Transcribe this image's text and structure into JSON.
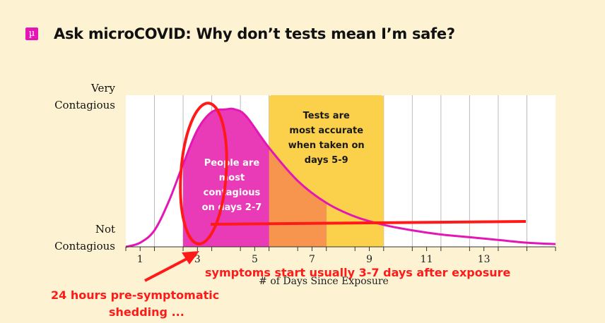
{
  "header": {
    "logo_glyph": "µ",
    "title": "Ask microCOVID: Why don’t tests mean I’m safe?"
  },
  "chart_data": {
    "type": "area",
    "x_ticks": [
      "1",
      "3",
      "5",
      "7",
      "9",
      "11",
      "13"
    ],
    "xlabel": "# of Days Since Exposure",
    "xlim": [
      0,
      15
    ],
    "y_tick_labels": [
      {
        "lines": [
          "Very",
          "Contagious"
        ]
      },
      {
        "lines": [
          "Not",
          "Contagious"
        ]
      }
    ],
    "ylim": [
      0,
      1
    ],
    "grid": "vertical",
    "series": [
      {
        "x": [
          0,
          0.5,
          1,
          1.5,
          2,
          2.5,
          3,
          3.5,
          3.8,
          4.2,
          5,
          6,
          7,
          8,
          9,
          10,
          11,
          12,
          13,
          14,
          15
        ],
        "y": [
          0,
          0.03,
          0.12,
          0.33,
          0.6,
          0.85,
          0.98,
          1.0,
          1.0,
          0.95,
          0.72,
          0.48,
          0.32,
          0.22,
          0.16,
          0.12,
          0.09,
          0.07,
          0.05,
          0.03,
          0.02
        ]
      }
    ],
    "regions": [
      {
        "x0": 2,
        "x1": 7,
        "color": "#e93ab7",
        "lines": [
          "People are",
          "most",
          "contagious",
          "on days 2-7"
        ],
        "text_color": "#ffffff"
      },
      {
        "x0": 5,
        "x1": 9,
        "color": "#fbd04a",
        "lines": [
          "Tests are",
          "most accurate",
          "when taken on",
          "days 5-9"
        ],
        "text_color": "#1a1a1a"
      }
    ],
    "colors": {
      "curve": "#e416b4",
      "overlap": "#f7954f",
      "grid": "#bbbbbb",
      "annotation": "#ff1a1a"
    }
  },
  "annotations": {
    "symptoms": "symptoms start usually 3-7 days after exposure",
    "presymptomatic": [
      "24 hours pre-symptomatic",
      "shedding ..."
    ]
  }
}
